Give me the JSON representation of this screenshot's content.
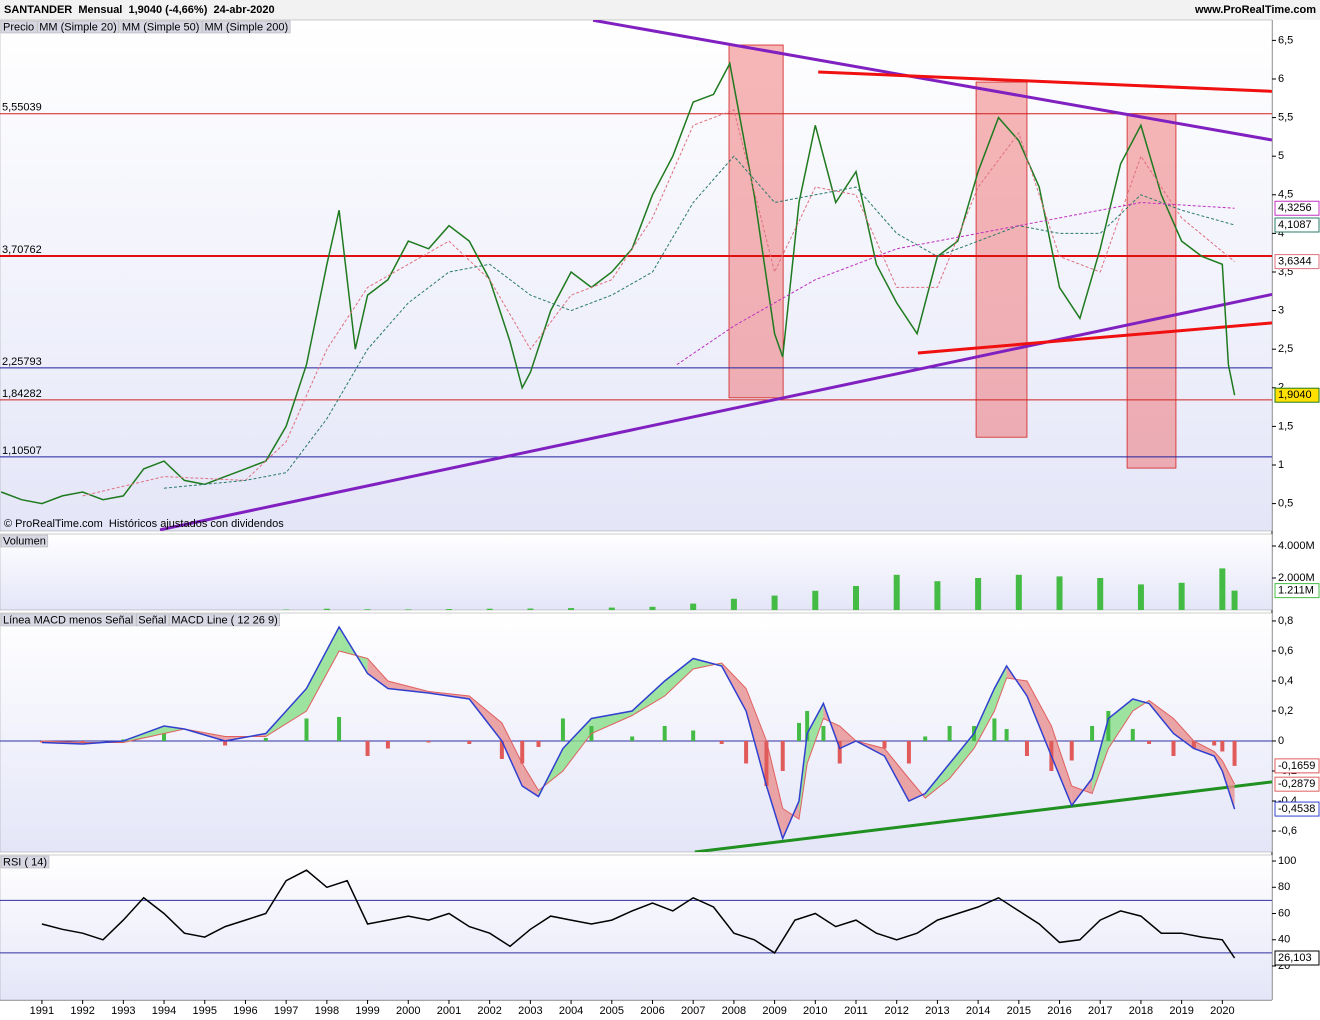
{
  "header": {
    "title": "SANTANDER  Mensual  1,9040 (-4,66%)  24-abr-2020",
    "site": "www.ProRealTime.com"
  },
  "chart_data": [
    {
      "type": "line",
      "footnote": "© ProRealTime.com  Históricos ajustados con dividendos",
      "xlim": [
        1989.97,
        2021.22
      ],
      "ylim": [
        0.145,
        6.764
      ],
      "yticks": [
        {
          "value": 0.5,
          "label": "0,5"
        },
        1,
        {
          "value": 1.5,
          "label": "1,5"
        },
        2,
        {
          "value": 2.5,
          "label": "2,5"
        },
        3,
        {
          "value": 3.5,
          "label": "3,5"
        },
        4,
        {
          "value": 4.5,
          "label": "4,5"
        },
        5,
        {
          "value": 5.5,
          "label": "5,5"
        },
        6,
        {
          "value": 6.5,
          "label": "6,5"
        }
      ],
      "series": [
        {
          "name": "Precio",
          "color": "#1f7a1f",
          "x": [
            1990.0,
            1990.5,
            1991.0,
            1991.5,
            1992.0,
            1992.5,
            1993.0,
            1993.5,
            1994.0,
            1994.5,
            1995.0,
            1995.5,
            1996.0,
            1996.5,
            1997.0,
            1997.5,
            1998.0,
            1998.3,
            1998.7,
            1999.0,
            1999.5,
            2000.0,
            2000.5,
            2001.0,
            2001.5,
            2002.0,
            2002.5,
            2002.8,
            2003.0,
            2003.5,
            2004.0,
            2004.5,
            2005.0,
            2005.5,
            2006.0,
            2006.5,
            2007.0,
            2007.5,
            2007.9,
            2008.5,
            2009.0,
            2009.2,
            2009.6,
            2010.0,
            2010.5,
            2011.0,
            2011.5,
            2012.0,
            2012.5,
            2013.0,
            2013.5,
            2014.0,
            2014.5,
            2015.0,
            2015.5,
            2016.0,
            2016.5,
            2017.0,
            2017.5,
            2018.0,
            2018.5,
            2019.0,
            2019.5,
            2020.0,
            2020.15,
            2020.3
          ],
          "values": [
            0.65,
            0.55,
            0.5,
            0.6,
            0.65,
            0.55,
            0.6,
            0.95,
            1.05,
            0.8,
            0.75,
            0.85,
            0.95,
            1.05,
            1.5,
            2.3,
            3.6,
            4.3,
            2.5,
            3.2,
            3.4,
            3.9,
            3.8,
            4.1,
            3.9,
            3.4,
            2.6,
            2.0,
            2.2,
            3.0,
            3.5,
            3.3,
            3.5,
            3.8,
            4.5,
            5.0,
            5.7,
            5.8,
            6.2,
            4.5,
            2.7,
            2.4,
            4.4,
            5.4,
            4.4,
            4.8,
            3.6,
            3.1,
            2.7,
            3.7,
            3.9,
            4.8,
            5.5,
            5.2,
            4.6,
            3.3,
            2.9,
            3.8,
            4.9,
            5.4,
            4.5,
            3.9,
            3.7,
            3.6,
            2.3,
            1.904
          ],
          "last": {
            "value": 1.904,
            "label": "1,9040"
          }
        },
        {
          "name": "MM (Simple 20)",
          "color": "#e07080",
          "dash": true,
          "x": [
            1992,
            1994,
            1996,
            1997,
            1998,
            1999,
            2000,
            2001,
            2002,
            2003,
            2004,
            2005,
            2006,
            2007,
            2008,
            2009,
            2010,
            2011,
            2012,
            2013,
            2014,
            2015,
            2016,
            2017,
            2018,
            2019,
            2020.3
          ],
          "values": [
            0.6,
            0.85,
            0.8,
            1.3,
            2.5,
            3.3,
            3.6,
            3.9,
            3.4,
            2.5,
            3.2,
            3.4,
            4.2,
            5.4,
            5.6,
            3.5,
            4.6,
            4.5,
            3.3,
            3.3,
            4.6,
            5.3,
            3.7,
            3.5,
            5.0,
            4.2,
            3.6344
          ],
          "last": {
            "value": 3.6344,
            "label": "3,6344"
          }
        },
        {
          "name": "MM (Simple 50)",
          "color": "#2a7a6a",
          "dash": true,
          "x": [
            1994,
            1996,
            1997,
            1998,
            1999,
            2000,
            2001,
            2002,
            2003,
            2004,
            2005,
            2006,
            2007,
            2008,
            2009,
            2010,
            2011,
            2012,
            2013,
            2014,
            2015,
            2016,
            2017,
            2018,
            2019,
            2020.3
          ],
          "values": [
            0.7,
            0.8,
            0.9,
            1.6,
            2.5,
            3.1,
            3.5,
            3.6,
            3.2,
            3.0,
            3.2,
            3.5,
            4.4,
            5.0,
            4.4,
            4.5,
            4.6,
            4.0,
            3.7,
            3.9,
            4.1,
            4.0,
            4.0,
            4.5,
            4.3,
            4.1087
          ],
          "last": {
            "value": 4.1087,
            "label": "4,1087"
          }
        },
        {
          "name": "MM (Simple 200)",
          "color": "#c030c0",
          "dash": true,
          "x": [
            2006.6,
            2008,
            2010,
            2012,
            2014,
            2016,
            2018,
            2020.3
          ],
          "values": [
            2.3,
            2.8,
            3.4,
            3.8,
            4.0,
            4.2,
            4.4,
            4.3256
          ],
          "last": {
            "value": 4.3256,
            "label": "4,3256"
          }
        }
      ],
      "levels": [
        {
          "value": 5.55039,
          "label": "5,55039",
          "color": "#d02020"
        },
        {
          "value": 3.70762,
          "label": "3,70762",
          "color": "#e01010"
        },
        {
          "value": 2.25793,
          "label": "2,25793",
          "color": "#2020a0"
        },
        {
          "value": 1.84282,
          "label": "1,84282",
          "color": "#d02020"
        },
        {
          "value": 1.10507,
          "label": "1,10507",
          "color": "#2020a0"
        }
      ],
      "trendlines": [
        {
          "color": "#8020c0",
          "x": [
            1993.9,
            2021.22
          ],
          "values": [
            0.16,
            3.21
          ]
        },
        {
          "color": "#8020c0",
          "x": [
            2004.54,
            2021.22
          ],
          "values": [
            6.76,
            5.21
          ]
        },
        {
          "color": "#f01010",
          "x": [
            2010.07,
            2021.22
          ],
          "values": [
            6.09,
            5.84
          ]
        },
        {
          "color": "#f01010",
          "x": [
            2012.52,
            2021.22
          ],
          "values": [
            2.45,
            2.84
          ]
        }
      ],
      "zones": [
        {
          "x": [
            2007.88,
            2009.21
          ],
          "values": [
            6.44,
            1.87
          ]
        },
        {
          "x": [
            2013.95,
            2015.2
          ],
          "values": [
            5.96,
            1.36
          ]
        },
        {
          "x": [
            2017.66,
            2018.86
          ],
          "values": [
            5.55,
            0.96
          ]
        }
      ]
    },
    {
      "type": "bar",
      "xlim": [
        1989.97,
        2021.22
      ],
      "ylim": [
        0,
        4750
      ],
      "yticks": [
        {
          "value": 2000,
          "label": "2.000M"
        },
        {
          "value": 4000,
          "label": "4.000M"
        }
      ],
      "series": [
        {
          "name": "Volumen",
          "color": "#44bb44",
          "x": [
            1997,
            1998,
            1999,
            2000,
            2001,
            2002,
            2003,
            2004,
            2005,
            2006,
            2007,
            2008,
            2009,
            2010,
            2011,
            2012,
            2013,
            2014,
            2015,
            2016,
            2017,
            2018,
            2019,
            2020,
            2020.3
          ],
          "values": [
            30,
            80,
            50,
            40,
            60,
            80,
            90,
            120,
            150,
            200,
            400,
            700,
            900,
            1200,
            1500,
            2200,
            1800,
            2000,
            2200,
            2100,
            2000,
            1600,
            1700,
            2600,
            1211
          ],
          "last": {
            "value": 1211,
            "label": "1.211M"
          }
        }
      ]
    },
    {
      "type": "macd",
      "xlim": [
        1989.97,
        2021.22
      ],
      "ylim": [
        -0.74,
        0.853
      ],
      "yticks": [
        {
          "value": -0.6,
          "label": "-0,6"
        },
        {
          "value": -0.4,
          "label": "-0,4"
        },
        {
          "value": -0.2,
          "label": "-0,2"
        },
        0,
        {
          "value": 0.2,
          "label": "0,2"
        },
        {
          "value": 0.4,
          "label": "0,4"
        },
        {
          "value": 0.6,
          "label": "0,6"
        },
        {
          "value": 0.8,
          "label": "0,8"
        }
      ],
      "x": [
        1991,
        1992,
        1993,
        1994,
        1994.5,
        1995.5,
        1996.5,
        1997.5,
        1998.3,
        1999,
        1999.5,
        2000.5,
        2001.5,
        2002.3,
        2002.8,
        2003.2,
        2003.8,
        2004.5,
        2005.5,
        2006.3,
        2007,
        2007.7,
        2008.3,
        2008.8,
        2009.2,
        2009.6,
        2009.8,
        2010.2,
        2010.6,
        2011,
        2011.7,
        2012.3,
        2012.7,
        2013.3,
        2013.9,
        2014.4,
        2014.7,
        2015.2,
        2015.8,
        2016.3,
        2016.8,
        2017.2,
        2017.8,
        2018.2,
        2018.8,
        2019.3,
        2019.8,
        2020,
        2020.3
      ],
      "series": [
        {
          "name": "Línea MACD menos Señal",
          "color": "#e05a5a",
          "up_color": "#44bb44",
          "values": [
            -0.01,
            -0.01,
            0.01,
            0.05,
            0,
            -0.03,
            0.02,
            0.15,
            0.16,
            -0.1,
            -0.05,
            -0.01,
            -0.02,
            -0.12,
            -0.15,
            -0.04,
            0.15,
            0.1,
            0.03,
            0.1,
            0.07,
            -0.02,
            -0.15,
            -0.3,
            -0.2,
            0.12,
            0.2,
            0.1,
            -0.15,
            0,
            -0.05,
            -0.15,
            0.03,
            0.1,
            0.1,
            0.15,
            0.08,
            -0.1,
            -0.2,
            -0.13,
            0.1,
            0.2,
            0.08,
            -0.02,
            -0.1,
            -0.05,
            -0.03,
            -0.07,
            -0.1659
          ],
          "last": {
            "value": -0.1659,
            "label": "-0,1659"
          }
        },
        {
          "name": "Señal",
          "color": "#e06060",
          "values": [
            0,
            -0.01,
            -0.01,
            0.05,
            0.08,
            0.03,
            0.03,
            0.2,
            0.6,
            0.55,
            0.4,
            0.33,
            0.3,
            0.12,
            -0.15,
            -0.33,
            -0.2,
            0.05,
            0.17,
            0.3,
            0.48,
            0.52,
            0.35,
            0,
            -0.45,
            -0.52,
            -0.15,
            0.15,
            0.1,
            0,
            -0.05,
            -0.25,
            -0.38,
            -0.25,
            -0.05,
            0.2,
            0.42,
            0.4,
            0.1,
            -0.3,
            -0.35,
            -0.05,
            0.2,
            0.27,
            0.15,
            0,
            -0.07,
            -0.13,
            -0.2879
          ],
          "last": {
            "value": -0.2879,
            "label": "-0,2879"
          }
        },
        {
          "name": "MACD Line ( 12 26 9)",
          "color": "#3040d0",
          "values": [
            -0.01,
            -0.02,
            0,
            0.1,
            0.08,
            0,
            0.05,
            0.35,
            0.76,
            0.45,
            0.35,
            0.32,
            0.28,
            0,
            -0.3,
            -0.37,
            -0.05,
            0.15,
            0.2,
            0.4,
            0.55,
            0.5,
            0.2,
            -0.3,
            -0.65,
            -0.4,
            0.05,
            0.25,
            -0.05,
            0,
            -0.1,
            -0.4,
            -0.35,
            -0.15,
            0.05,
            0.35,
            0.5,
            0.3,
            -0.1,
            -0.43,
            -0.25,
            0.15,
            0.28,
            0.25,
            0.05,
            -0.05,
            -0.1,
            -0.2,
            -0.4538
          ],
          "last": {
            "value": -0.4538,
            "label": "-0,4538"
          }
        }
      ],
      "levels": [
        {
          "value": 0,
          "color": "#3030a0"
        }
      ],
      "trendlines": [
        {
          "color": "#209020",
          "x": [
            2007.04,
            2021.22
          ],
          "values": [
            -0.74,
            -0.273
          ]
        }
      ]
    },
    {
      "type": "line",
      "xlim": [
        1989.97,
        2021.22
      ],
      "ylim": [
        -5.9,
        104.6
      ],
      "yticks": [
        20,
        40,
        60,
        80,
        100
      ],
      "xticks": [
        1991,
        1992,
        1993,
        1994,
        1995,
        1996,
        1997,
        1998,
        1999,
        2000,
        2001,
        2002,
        2003,
        2004,
        2005,
        2006,
        2007,
        2008,
        2009,
        2010,
        2011,
        2012,
        2013,
        2014,
        2015,
        2016,
        2017,
        2018,
        2019,
        2020
      ],
      "series": [
        {
          "name": "RSI ( 14)",
          "color": "#000000",
          "x": [
            1991,
            1991.5,
            1992,
            1992.5,
            1993,
            1993.5,
            1994,
            1994.5,
            1995,
            1995.5,
            1996,
            1996.5,
            1997,
            1997.5,
            1998,
            1998.5,
            1999,
            1999.5,
            2000,
            2000.5,
            2001,
            2001.5,
            2002,
            2002.5,
            2003,
            2003.5,
            2004,
            2004.5,
            2005,
            2005.5,
            2006,
            2006.5,
            2007,
            2007.5,
            2008,
            2008.5,
            2009,
            2009.5,
            2010,
            2010.5,
            2011,
            2011.5,
            2012,
            2012.5,
            2013,
            2013.5,
            2014,
            2014.5,
            2015,
            2015.5,
            2016,
            2016.5,
            2017,
            2017.5,
            2018,
            2018.5,
            2019,
            2019.5,
            2020,
            2020.3
          ],
          "values": [
            52,
            48,
            45,
            40,
            55,
            72,
            60,
            45,
            42,
            50,
            55,
            60,
            85,
            93,
            80,
            85,
            52,
            55,
            58,
            55,
            60,
            50,
            45,
            35,
            48,
            58,
            55,
            52,
            55,
            62,
            68,
            62,
            72,
            65,
            45,
            40,
            30,
            55,
            60,
            50,
            55,
            45,
            40,
            45,
            55,
            60,
            65,
            72,
            62,
            52,
            38,
            40,
            55,
            62,
            58,
            45,
            45,
            42,
            40,
            26.103
          ],
          "last": {
            "value": 26.103,
            "label": "26,103"
          }
        }
      ],
      "levels": [
        {
          "value": 30,
          "color": "#3030a0"
        },
        {
          "value": 70,
          "color": "#3030a0"
        }
      ]
    }
  ]
}
